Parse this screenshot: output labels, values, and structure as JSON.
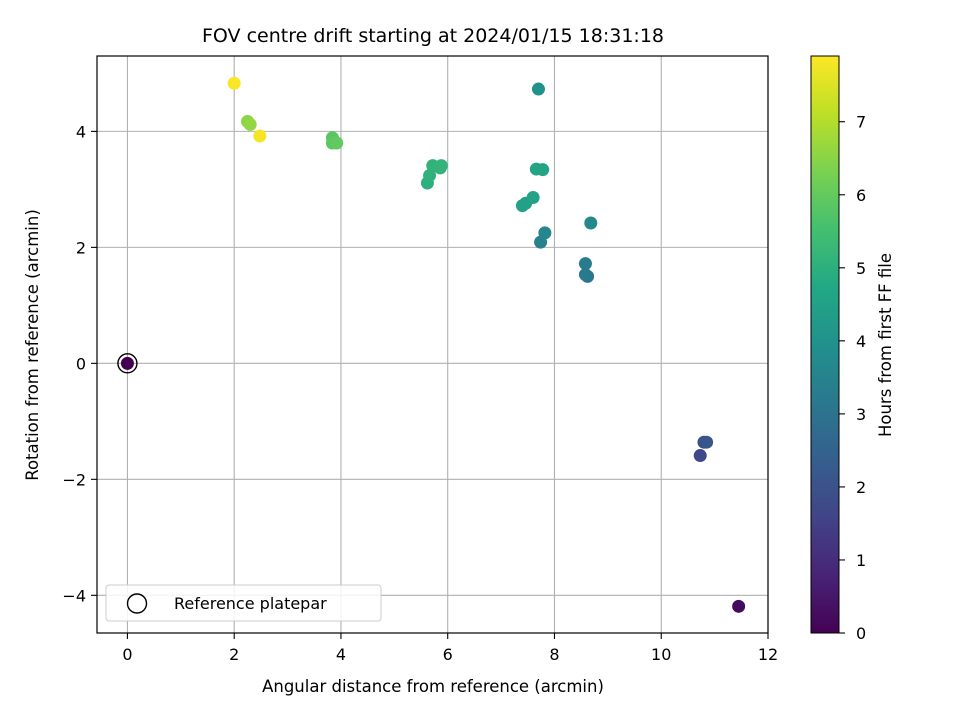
{
  "chart_data": {
    "type": "scatter",
    "title": "FOV centre drift starting at 2024/01/15 18:31:18",
    "xlabel": "Angular distance from reference (arcmin)",
    "ylabel": "Rotation from reference (arcmin)",
    "xlim": [
      -0.57,
      12.0
    ],
    "ylim": [
      -4.65,
      5.3
    ],
    "xticks": [
      "0",
      "2",
      "4",
      "6",
      "8",
      "10",
      "12"
    ],
    "yticks": [
      "−4",
      "−2",
      "0",
      "2",
      "4"
    ],
    "xtick_values": [
      0,
      2,
      4,
      6,
      8,
      10,
      12
    ],
    "ytick_values": [
      -4,
      -2,
      0,
      2,
      4
    ],
    "grid": true,
    "legend": {
      "location": "lower left",
      "entries": [
        "Reference platepar"
      ]
    },
    "colorbar": {
      "label": "Hours from first FF file",
      "ticks": [
        "0",
        "1",
        "2",
        "3",
        "4",
        "5",
        "6",
        "7"
      ],
      "tick_values": [
        0,
        1,
        2,
        3,
        4,
        5,
        6,
        7
      ],
      "range": [
        0,
        7.9
      ],
      "colormap": "viridis"
    },
    "reference_point": {
      "x": 0,
      "y": 0,
      "hours": 0.0
    },
    "series": [
      {
        "values": [
          {
            "x": 11.45,
            "y": -4.19,
            "hours": 0.25
          },
          {
            "x": 10.73,
            "y": -1.59,
            "hours": 1.75
          },
          {
            "x": 10.8,
            "y": -1.36,
            "hours": 2.0
          },
          {
            "x": 10.85,
            "y": -1.36,
            "hours": 2.1
          },
          {
            "x": 8.62,
            "y": 1.5,
            "hours": 3.1
          },
          {
            "x": 8.58,
            "y": 1.53,
            "hours": 3.2
          },
          {
            "x": 8.58,
            "y": 1.72,
            "hours": 3.3
          },
          {
            "x": 7.74,
            "y": 2.09,
            "hours": 3.5
          },
          {
            "x": 7.82,
            "y": 2.25,
            "hours": 3.6
          },
          {
            "x": 8.68,
            "y": 2.42,
            "hours": 3.7
          },
          {
            "x": 7.7,
            "y": 4.73,
            "hours": 4.0
          },
          {
            "x": 7.4,
            "y": 2.72,
            "hours": 4.5
          },
          {
            "x": 7.46,
            "y": 2.76,
            "hours": 4.5
          },
          {
            "x": 7.6,
            "y": 2.86,
            "hours": 4.55
          },
          {
            "x": 7.66,
            "y": 3.35,
            "hours": 4.6
          },
          {
            "x": 7.78,
            "y": 3.34,
            "hours": 4.6
          },
          {
            "x": 5.62,
            "y": 3.11,
            "hours": 5.0
          },
          {
            "x": 5.66,
            "y": 3.24,
            "hours": 5.05
          },
          {
            "x": 5.72,
            "y": 3.41,
            "hours": 5.1
          },
          {
            "x": 5.86,
            "y": 3.37,
            "hours": 5.1
          },
          {
            "x": 5.88,
            "y": 3.41,
            "hours": 5.15
          },
          {
            "x": 3.84,
            "y": 3.89,
            "hours": 5.85
          },
          {
            "x": 3.84,
            "y": 3.8,
            "hours": 5.9
          },
          {
            "x": 3.92,
            "y": 3.8,
            "hours": 5.95
          },
          {
            "x": 2.25,
            "y": 4.17,
            "hours": 6.5
          },
          {
            "x": 2.3,
            "y": 4.12,
            "hours": 6.6
          },
          {
            "x": 2.48,
            "y": 3.92,
            "hours": 7.8
          },
          {
            "x": 2.0,
            "y": 4.83,
            "hours": 7.85
          }
        ]
      }
    ],
    "colors": {
      "grid": "#b0b0b0",
      "reference_marker_edge": "#000000",
      "reference_marker_fill": "#440154"
    }
  }
}
